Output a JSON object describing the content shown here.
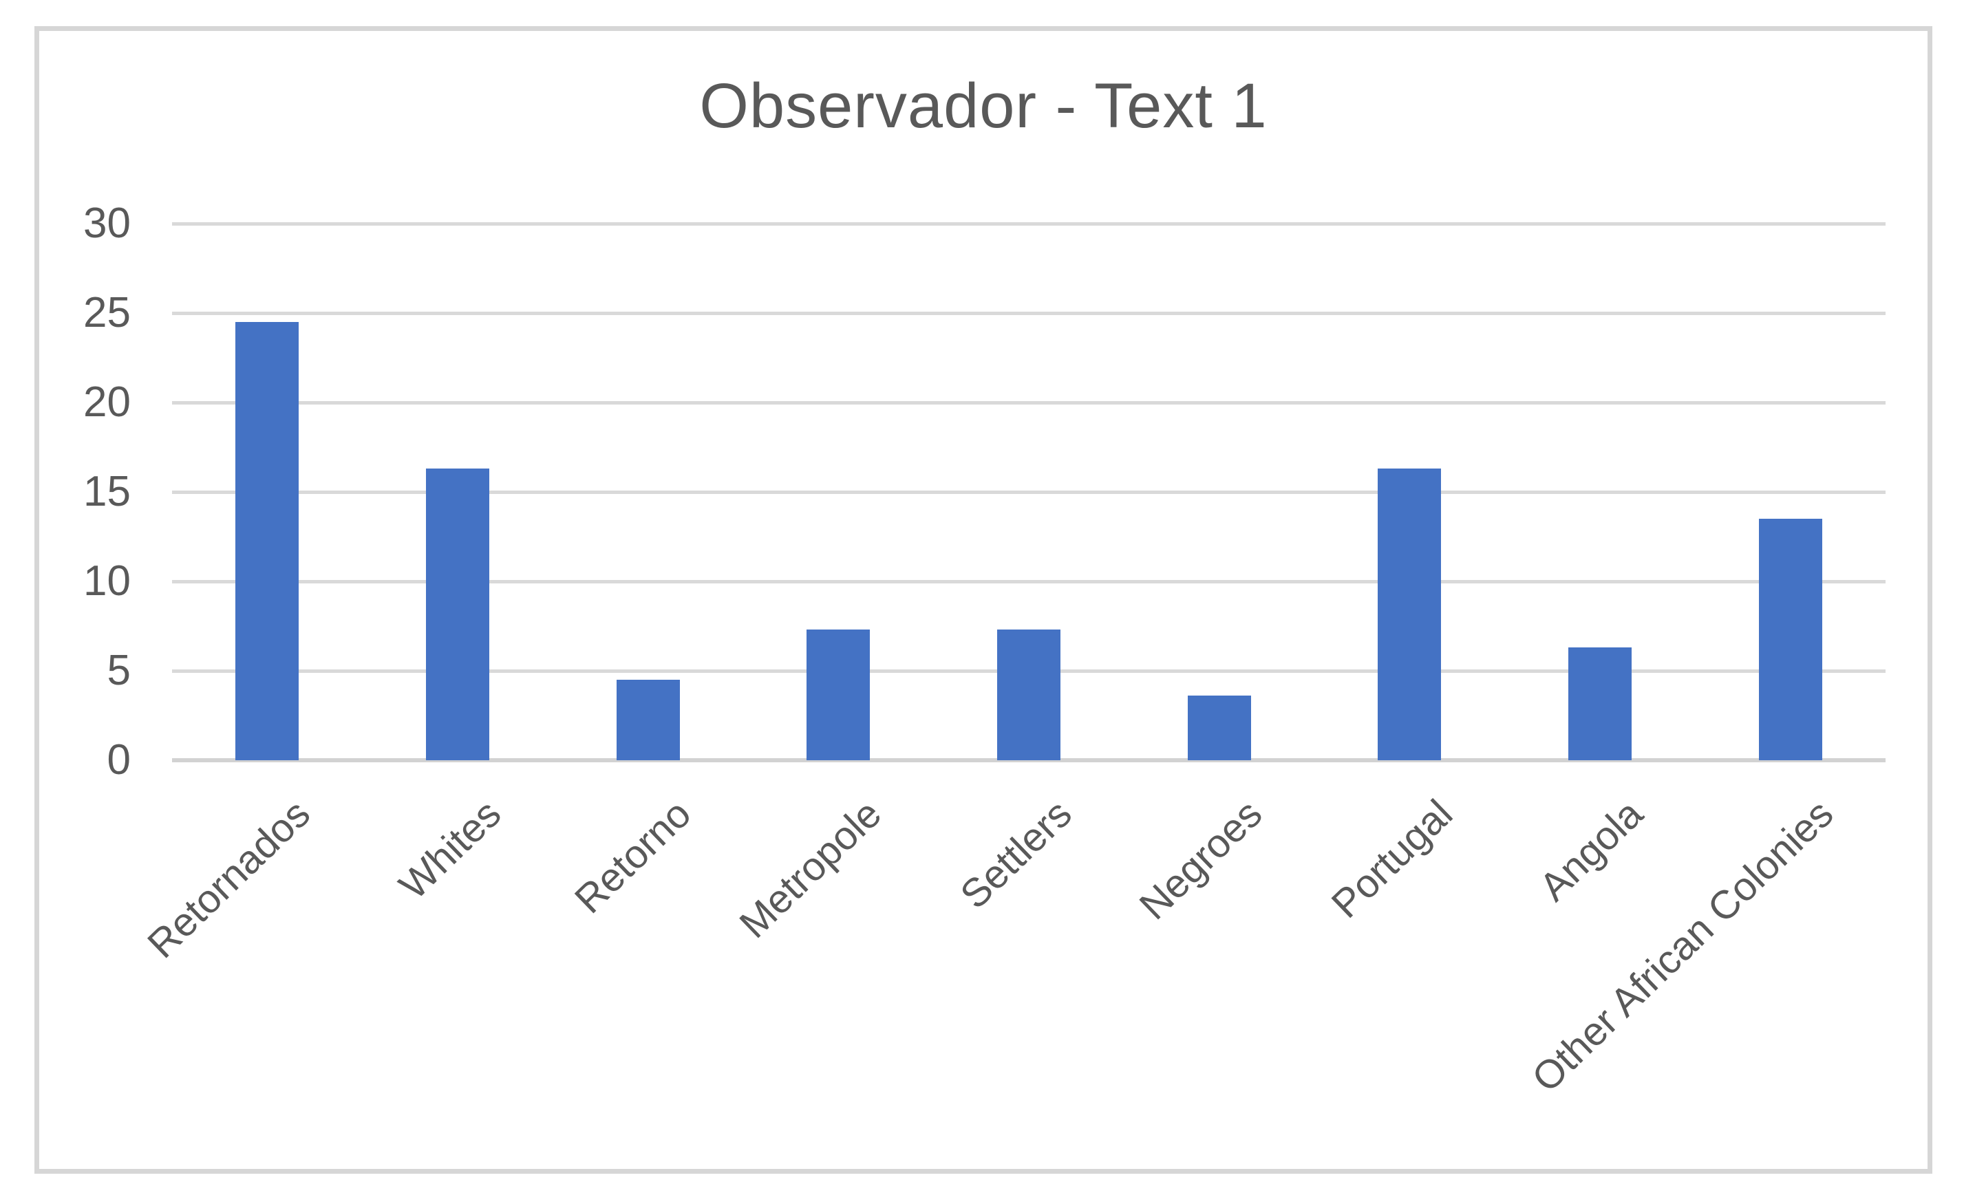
{
  "chart_data": {
    "type": "bar",
    "title": "Observador - Text 1",
    "categories": [
      "Retornados",
      "Whites",
      "Retorno",
      "Metropole",
      "Settlers",
      "Negroes",
      "Portugal",
      "Angola",
      "Other African Colonies"
    ],
    "values": [
      24.5,
      16.3,
      4.5,
      7.3,
      7.3,
      3.6,
      16.3,
      6.3,
      13.5
    ],
    "yticks": [
      0,
      5,
      10,
      15,
      20,
      25,
      30
    ],
    "ylim": [
      0,
      30
    ],
    "xlabel": "",
    "ylabel": "",
    "grid": true,
    "legend": false,
    "colors": {
      "bar": "#4472C4",
      "gridline": "#D9D9D9",
      "axis_text": "#595959",
      "title_text": "#595959",
      "frame_border": "#D6D6D6",
      "background": "#FFFFFF"
    }
  }
}
